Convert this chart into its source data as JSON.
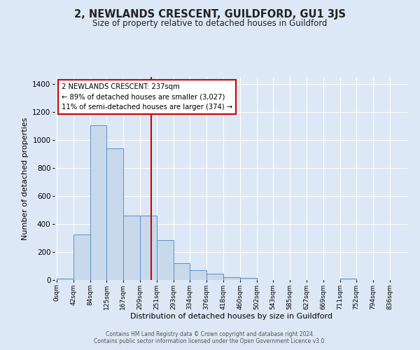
{
  "title": "2, NEWLANDS CRESCENT, GUILDFORD, GU1 3JS",
  "subtitle": "Size of property relative to detached houses in Guildford",
  "xlabel": "Distribution of detached houses by size in Guildford",
  "ylabel": "Number of detached properties",
  "bar_labels": [
    "0sqm",
    "42sqm",
    "84sqm",
    "125sqm",
    "167sqm",
    "209sqm",
    "251sqm",
    "293sqm",
    "334sqm",
    "376sqm",
    "418sqm",
    "460sqm",
    "502sqm",
    "543sqm",
    "585sqm",
    "627sqm",
    "669sqm",
    "711sqm",
    "752sqm",
    "794sqm",
    "836sqm"
  ],
  "bar_values": [
    8,
    325,
    1105,
    940,
    462,
    462,
    285,
    120,
    70,
    45,
    20,
    15,
    0,
    0,
    0,
    0,
    0,
    10,
    0,
    0,
    0
  ],
  "bar_color": "#c9d9ec",
  "bar_edge_color": "#5b8fc9",
  "ylim": [
    0,
    1450
  ],
  "yticks": [
    0,
    200,
    400,
    600,
    800,
    1000,
    1200,
    1400
  ],
  "property_line_x": 237,
  "property_line_color": "#cc0000",
  "annotation_title": "2 NEWLANDS CRESCENT: 237sqm",
  "annotation_line1": "← 89% of detached houses are smaller (3,027)",
  "annotation_line2": "11% of semi-detached houses are larger (374) →",
  "annotation_box_color": "#ffffff",
  "annotation_box_edge_color": "#cc0000",
  "footer_line1": "Contains HM Land Registry data © Crown copyright and database right 2024.",
  "footer_line2": "Contains public sector information licensed under the Open Government Licence v3.0.",
  "background_color": "#dce8f5",
  "plot_bg_color": "#dce8f5",
  "bin_left": [
    0,
    42,
    84,
    125,
    167,
    209,
    251,
    293,
    334,
    376,
    418,
    460,
    502,
    543,
    585,
    627,
    669,
    711,
    752,
    794,
    836
  ],
  "bin_right": [
    42,
    84,
    125,
    167,
    209,
    251,
    293,
    334,
    376,
    418,
    460,
    502,
    543,
    585,
    627,
    669,
    711,
    752,
    794,
    836,
    878
  ]
}
